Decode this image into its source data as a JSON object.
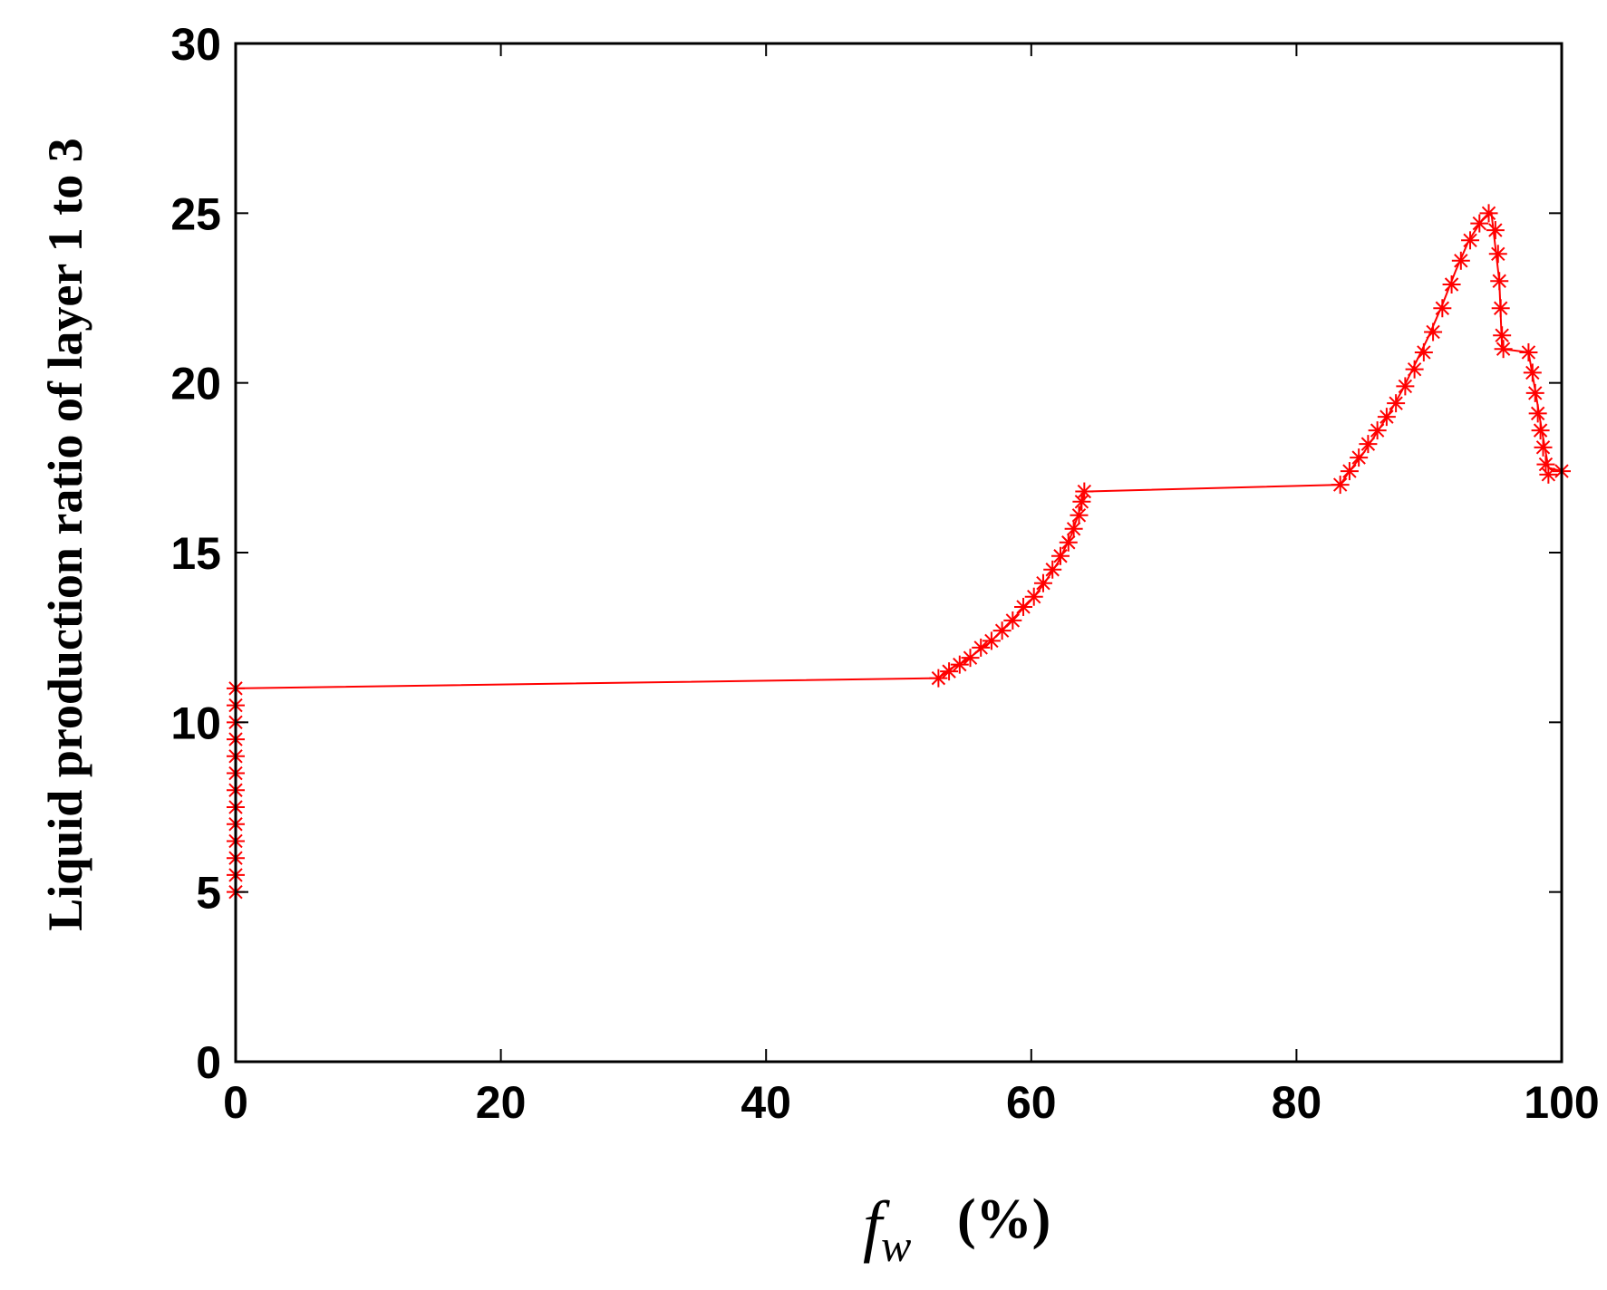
{
  "chart_data": {
    "type": "line",
    "title": "",
    "xlabel": {
      "symbol": "f",
      "subscript": "w",
      "unit": "(%)"
    },
    "ylabel": "Liquid production ratio of layer 1 to 3",
    "xlim": [
      0,
      100
    ],
    "ylim": [
      0,
      30
    ],
    "xticks": [
      0,
      20,
      40,
      60,
      80,
      100
    ],
    "yticks": [
      0,
      5,
      10,
      15,
      20,
      25,
      30
    ],
    "grid": false,
    "legend": "none",
    "line_color": "#ff0000",
    "marker": "asterisk",
    "series": [
      {
        "line_points": [
          {
            "x": 0,
            "y": 5.0
          },
          {
            "x": 0,
            "y": 11.0
          },
          {
            "x": 53.0,
            "y": 11.3
          },
          {
            "x": 54.0,
            "y": 11.6
          },
          {
            "x": 55.0,
            "y": 11.8
          },
          {
            "x": 56.0,
            "y": 12.1
          },
          {
            "x": 57.0,
            "y": 12.4
          },
          {
            "x": 58.0,
            "y": 12.8
          },
          {
            "x": 59.0,
            "y": 13.2
          },
          {
            "x": 60.0,
            "y": 13.6
          },
          {
            "x": 61.0,
            "y": 14.1
          },
          {
            "x": 62.0,
            "y": 14.7
          },
          {
            "x": 63.0,
            "y": 15.5
          },
          {
            "x": 63.7,
            "y": 16.3
          },
          {
            "x": 64.0,
            "y": 16.8
          },
          {
            "x": 83.3,
            "y": 17.0
          },
          {
            "x": 84.0,
            "y": 17.4
          },
          {
            "x": 85.0,
            "y": 17.9
          },
          {
            "x": 86.0,
            "y": 18.5
          },
          {
            "x": 87.0,
            "y": 19.1
          },
          {
            "x": 88.0,
            "y": 19.8
          },
          {
            "x": 89.0,
            "y": 20.6
          },
          {
            "x": 90.0,
            "y": 21.4
          },
          {
            "x": 91.0,
            "y": 22.3
          },
          {
            "x": 92.0,
            "y": 23.3
          },
          {
            "x": 93.0,
            "y": 24.2
          },
          {
            "x": 94.0,
            "y": 24.8
          },
          {
            "x": 94.7,
            "y": 25.0
          },
          {
            "x": 95.3,
            "y": 23.0
          },
          {
            "x": 95.5,
            "y": 21.0
          },
          {
            "x": 97.5,
            "y": 20.9
          },
          {
            "x": 98.0,
            "y": 19.8
          },
          {
            "x": 98.5,
            "y": 18.6
          },
          {
            "x": 99.0,
            "y": 17.5
          },
          {
            "x": 100.0,
            "y": 17.4
          }
        ],
        "marker_points": [
          {
            "x": 0,
            "y": 5.0
          },
          {
            "x": 0,
            "y": 5.5
          },
          {
            "x": 0,
            "y": 6.0
          },
          {
            "x": 0,
            "y": 6.5
          },
          {
            "x": 0,
            "y": 7.0
          },
          {
            "x": 0,
            "y": 7.5
          },
          {
            "x": 0,
            "y": 8.0
          },
          {
            "x": 0,
            "y": 8.5
          },
          {
            "x": 0,
            "y": 9.0
          },
          {
            "x": 0,
            "y": 9.5
          },
          {
            "x": 0,
            "y": 10.0
          },
          {
            "x": 0,
            "y": 10.5
          },
          {
            "x": 0,
            "y": 11.0
          },
          {
            "x": 53.0,
            "y": 11.3
          },
          {
            "x": 53.8,
            "y": 11.5
          },
          {
            "x": 54.6,
            "y": 11.7
          },
          {
            "x": 55.4,
            "y": 11.9
          },
          {
            "x": 56.2,
            "y": 12.2
          },
          {
            "x": 57.0,
            "y": 12.4
          },
          {
            "x": 57.8,
            "y": 12.7
          },
          {
            "x": 58.6,
            "y": 13.0
          },
          {
            "x": 59.4,
            "y": 13.4
          },
          {
            "x": 60.2,
            "y": 13.7
          },
          {
            "x": 60.9,
            "y": 14.1
          },
          {
            "x": 61.6,
            "y": 14.5
          },
          {
            "x": 62.2,
            "y": 14.9
          },
          {
            "x": 62.8,
            "y": 15.3
          },
          {
            "x": 63.2,
            "y": 15.7
          },
          {
            "x": 63.6,
            "y": 16.1
          },
          {
            "x": 63.8,
            "y": 16.5
          },
          {
            "x": 64.0,
            "y": 16.8
          },
          {
            "x": 83.3,
            "y": 17.0
          },
          {
            "x": 84.0,
            "y": 17.4
          },
          {
            "x": 84.7,
            "y": 17.8
          },
          {
            "x": 85.4,
            "y": 18.2
          },
          {
            "x": 86.1,
            "y": 18.6
          },
          {
            "x": 86.8,
            "y": 19.0
          },
          {
            "x": 87.5,
            "y": 19.4
          },
          {
            "x": 88.2,
            "y": 19.9
          },
          {
            "x": 88.9,
            "y": 20.4
          },
          {
            "x": 89.6,
            "y": 20.9
          },
          {
            "x": 90.3,
            "y": 21.5
          },
          {
            "x": 91.0,
            "y": 22.2
          },
          {
            "x": 91.7,
            "y": 22.9
          },
          {
            "x": 92.4,
            "y": 23.6
          },
          {
            "x": 93.1,
            "y": 24.2
          },
          {
            "x": 93.8,
            "y": 24.7
          },
          {
            "x": 94.5,
            "y": 25.0
          },
          {
            "x": 95.0,
            "y": 24.5
          },
          {
            "x": 95.2,
            "y": 23.8
          },
          {
            "x": 95.3,
            "y": 23.0
          },
          {
            "x": 95.4,
            "y": 22.2
          },
          {
            "x": 95.5,
            "y": 21.4
          },
          {
            "x": 95.6,
            "y": 21.0
          },
          {
            "x": 97.5,
            "y": 20.9
          },
          {
            "x": 97.8,
            "y": 20.3
          },
          {
            "x": 98.0,
            "y": 19.7
          },
          {
            "x": 98.2,
            "y": 19.1
          },
          {
            "x": 98.4,
            "y": 18.6
          },
          {
            "x": 98.6,
            "y": 18.1
          },
          {
            "x": 98.8,
            "y": 17.6
          },
          {
            "x": 99.0,
            "y": 17.3
          },
          {
            "x": 100.0,
            "y": 17.4
          }
        ]
      }
    ]
  }
}
